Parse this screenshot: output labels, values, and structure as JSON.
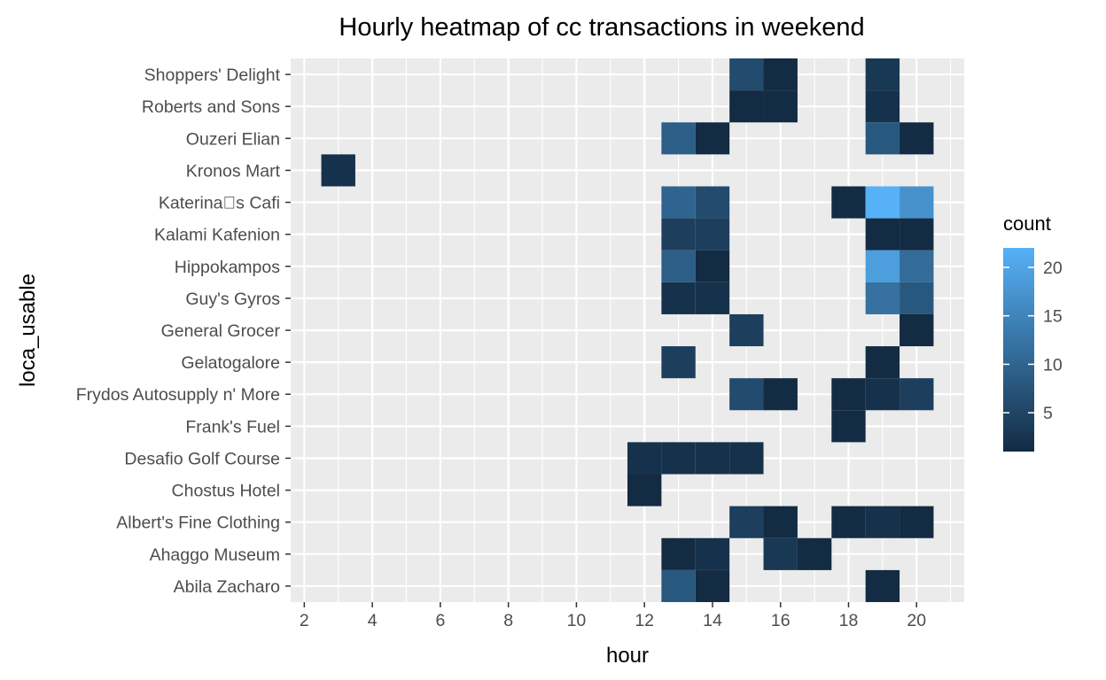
{
  "chart_data": {
    "type": "heatmap",
    "title": "Hourly heatmap of cc transactions in weekend",
    "xlabel": "hour",
    "ylabel": "loca_usable",
    "xlim": [
      1.6,
      21.4
    ],
    "x_ticks": [
      2,
      4,
      6,
      8,
      10,
      12,
      14,
      16,
      18,
      20
    ],
    "categories": [
      "Abila Zacharo",
      "Ahaggo Museum",
      "Albert's Fine Clothing",
      "Chostus Hotel",
      "Desafio Golf Course",
      "Frank's Fuel",
      "Frydos Autosupply n' More",
      "Gelatogalore",
      "General Grocer",
      "Guy's Gyros",
      "Hippokampos",
      "Kalami Kafenion",
      "Katerina\u0000s Cafi",
      "Kronos Mart",
      "Ouzeri Elian",
      "Roberts and Sons",
      "Shoppers' Delight"
    ],
    "cells": [
      {
        "y": "Shoppers' Delight",
        "x": 15,
        "count": 6
      },
      {
        "y": "Shoppers' Delight",
        "x": 16,
        "count": 1
      },
      {
        "y": "Shoppers' Delight",
        "x": 19,
        "count": 3
      },
      {
        "y": "Roberts and Sons",
        "x": 15,
        "count": 1
      },
      {
        "y": "Roberts and Sons",
        "x": 16,
        "count": 1
      },
      {
        "y": "Roberts and Sons",
        "x": 19,
        "count": 2
      },
      {
        "y": "Ouzeri Elian",
        "x": 13,
        "count": 9
      },
      {
        "y": "Ouzeri Elian",
        "x": 14,
        "count": 1
      },
      {
        "y": "Ouzeri Elian",
        "x": 19,
        "count": 8
      },
      {
        "y": "Ouzeri Elian",
        "x": 20,
        "count": 1
      },
      {
        "y": "Kronos Mart",
        "x": 3,
        "count": 2
      },
      {
        "y": "Katerina\u0000s Cafi",
        "x": 13,
        "count": 10
      },
      {
        "y": "Katerina\u0000s Cafi",
        "x": 14,
        "count": 6
      },
      {
        "y": "Katerina\u0000s Cafi",
        "x": 18,
        "count": 1
      },
      {
        "y": "Katerina\u0000s Cafi",
        "x": 19,
        "count": 22
      },
      {
        "y": "Katerina\u0000s Cafi",
        "x": 20,
        "count": 17
      },
      {
        "y": "Kalami Kafenion",
        "x": 13,
        "count": 4
      },
      {
        "y": "Kalami Kafenion",
        "x": 14,
        "count": 4
      },
      {
        "y": "Kalami Kafenion",
        "x": 19,
        "count": 1
      },
      {
        "y": "Kalami Kafenion",
        "x": 20,
        "count": 1
      },
      {
        "y": "Hippokampos",
        "x": 13,
        "count": 9
      },
      {
        "y": "Hippokampos",
        "x": 14,
        "count": 1
      },
      {
        "y": "Hippokampos",
        "x": 19,
        "count": 19
      },
      {
        "y": "Hippokampos",
        "x": 20,
        "count": 11
      },
      {
        "y": "Guy's Gyros",
        "x": 13,
        "count": 2
      },
      {
        "y": "Guy's Gyros",
        "x": 14,
        "count": 2
      },
      {
        "y": "Guy's Gyros",
        "x": 19,
        "count": 12
      },
      {
        "y": "Guy's Gyros",
        "x": 20,
        "count": 8
      },
      {
        "y": "General Grocer",
        "x": 15,
        "count": 4
      },
      {
        "y": "General Grocer",
        "x": 20,
        "count": 1
      },
      {
        "y": "Gelatogalore",
        "x": 13,
        "count": 4
      },
      {
        "y": "Gelatogalore",
        "x": 19,
        "count": 1
      },
      {
        "y": "Frydos Autosupply n' More",
        "x": 15,
        "count": 6
      },
      {
        "y": "Frydos Autosupply n' More",
        "x": 16,
        "count": 1
      },
      {
        "y": "Frydos Autosupply n' More",
        "x": 18,
        "count": 1
      },
      {
        "y": "Frydos Autosupply n' More",
        "x": 19,
        "count": 2
      },
      {
        "y": "Frydos Autosupply n' More",
        "x": 20,
        "count": 4
      },
      {
        "y": "Frank's Fuel",
        "x": 18,
        "count": 1
      },
      {
        "y": "Desafio Golf Course",
        "x": 12,
        "count": 2
      },
      {
        "y": "Desafio Golf Course",
        "x": 13,
        "count": 2
      },
      {
        "y": "Desafio Golf Course",
        "x": 14,
        "count": 2
      },
      {
        "y": "Desafio Golf Course",
        "x": 15,
        "count": 2
      },
      {
        "y": "Chostus Hotel",
        "x": 12,
        "count": 1
      },
      {
        "y": "Albert's Fine Clothing",
        "x": 15,
        "count": 4
      },
      {
        "y": "Albert's Fine Clothing",
        "x": 16,
        "count": 1
      },
      {
        "y": "Albert's Fine Clothing",
        "x": 18,
        "count": 1
      },
      {
        "y": "Albert's Fine Clothing",
        "x": 19,
        "count": 2
      },
      {
        "y": "Albert's Fine Clothing",
        "x": 20,
        "count": 1
      },
      {
        "y": "Ahaggo Museum",
        "x": 13,
        "count": 1
      },
      {
        "y": "Ahaggo Museum",
        "x": 14,
        "count": 2
      },
      {
        "y": "Ahaggo Museum",
        "x": 16,
        "count": 3
      },
      {
        "y": "Ahaggo Museum",
        "x": 17,
        "count": 1
      },
      {
        "y": "Abila Zacharo",
        "x": 13,
        "count": 8
      },
      {
        "y": "Abila Zacharo",
        "x": 14,
        "count": 1
      },
      {
        "y": "Abila Zacharo",
        "x": 19,
        "count": 1
      }
    ],
    "legend": {
      "title": "count",
      "position": "right",
      "breaks": [
        5,
        10,
        15,
        20
      ],
      "range": [
        1,
        22
      ],
      "low_color": "#132B43",
      "high_color": "#56B1F7"
    },
    "panel_background": "#EBEBEB",
    "grid": true
  }
}
